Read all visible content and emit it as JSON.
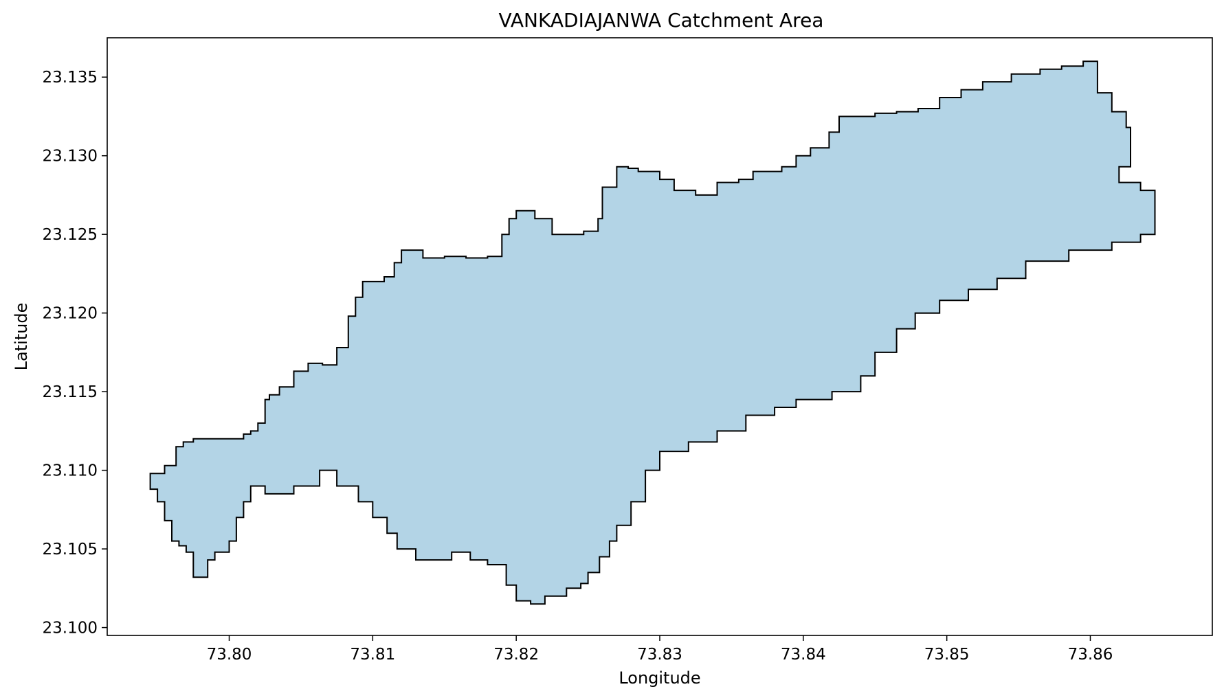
{
  "chart_data": {
    "type": "map",
    "title": "VANKADIAJANWA Catchment Area",
    "xlabel": "Longitude",
    "ylabel": "Latitude",
    "xlim": [
      73.7915,
      73.8685
    ],
    "ylim": [
      23.0995,
      23.1375
    ],
    "x_ticks": [
      {
        "value": 73.8,
        "label": "73.80"
      },
      {
        "value": 73.81,
        "label": "73.81"
      },
      {
        "value": 73.82,
        "label": "73.82"
      },
      {
        "value": 73.83,
        "label": "73.83"
      },
      {
        "value": 73.84,
        "label": "73.84"
      },
      {
        "value": 73.85,
        "label": "73.85"
      },
      {
        "value": 73.86,
        "label": "73.86"
      }
    ],
    "y_ticks": [
      {
        "value": 23.1,
        "label": "23.100"
      },
      {
        "value": 23.105,
        "label": "23.105"
      },
      {
        "value": 23.11,
        "label": "23.110"
      },
      {
        "value": 23.115,
        "label": "23.115"
      },
      {
        "value": 23.12,
        "label": "23.120"
      },
      {
        "value": 23.125,
        "label": "23.125"
      },
      {
        "value": 23.13,
        "label": "23.130"
      },
      {
        "value": 23.135,
        "label": "23.135"
      }
    ],
    "grid": false,
    "colors": {
      "fill": "#b3d4e6",
      "edge": "#000000"
    },
    "boundary": [
      [
        73.7955,
        23.1103
      ],
      [
        73.7963,
        23.1115
      ],
      [
        73.7968,
        23.1118
      ],
      [
        73.7975,
        23.112
      ],
      [
        73.8,
        23.112
      ],
      [
        73.801,
        23.1123
      ],
      [
        73.8015,
        23.1125
      ],
      [
        73.802,
        23.113
      ],
      [
        73.8025,
        23.1145
      ],
      [
        73.8028,
        23.1148
      ],
      [
        73.8035,
        23.1153
      ],
      [
        73.8045,
        23.1163
      ],
      [
        73.8055,
        23.1168
      ],
      [
        73.8065,
        23.1167
      ],
      [
        73.8075,
        23.1178
      ],
      [
        73.8083,
        23.1198
      ],
      [
        73.8088,
        23.121
      ],
      [
        73.8093,
        23.122
      ],
      [
        73.8108,
        23.1223
      ],
      [
        73.8115,
        23.1232
      ],
      [
        73.812,
        23.124
      ],
      [
        73.8135,
        23.1235
      ],
      [
        73.815,
        23.1236
      ],
      [
        73.8165,
        23.1235
      ],
      [
        73.818,
        23.1236
      ],
      [
        73.819,
        23.125
      ],
      [
        73.8195,
        23.126
      ],
      [
        73.82,
        23.1265
      ],
      [
        73.8213,
        23.126
      ],
      [
        73.8225,
        23.125
      ],
      [
        73.8235,
        23.125
      ],
      [
        73.8247,
        23.1252
      ],
      [
        73.8257,
        23.126
      ],
      [
        73.826,
        23.128
      ],
      [
        73.827,
        23.1293
      ],
      [
        73.8278,
        23.1292
      ],
      [
        73.8285,
        23.129
      ],
      [
        73.83,
        23.1285
      ],
      [
        73.831,
        23.1278
      ],
      [
        73.8325,
        23.1275
      ],
      [
        73.834,
        23.1283
      ],
      [
        73.8355,
        23.1285
      ],
      [
        73.8365,
        23.129
      ],
      [
        73.8375,
        23.129
      ],
      [
        73.8385,
        23.1293
      ],
      [
        73.8395,
        23.13
      ],
      [
        73.8405,
        23.1305
      ],
      [
        73.8418,
        23.1315
      ],
      [
        73.8425,
        23.1325
      ],
      [
        73.845,
        23.1327
      ],
      [
        73.8465,
        23.1328
      ],
      [
        73.848,
        23.133
      ],
      [
        73.8495,
        23.1337
      ],
      [
        73.851,
        23.1342
      ],
      [
        73.8525,
        23.1347
      ],
      [
        73.8545,
        23.1352
      ],
      [
        73.8565,
        23.1355
      ],
      [
        73.858,
        23.1357
      ],
      [
        73.8595,
        23.136
      ],
      [
        73.8605,
        23.134
      ],
      [
        73.8615,
        23.1328
      ],
      [
        73.8625,
        23.1318
      ],
      [
        73.8628,
        23.1293
      ],
      [
        73.862,
        23.1283
      ],
      [
        73.8635,
        23.1278
      ],
      [
        73.8645,
        23.1262
      ],
      [
        73.8645,
        23.125
      ],
      [
        73.8635,
        23.1245
      ],
      [
        73.8615,
        23.124
      ],
      [
        73.8585,
        23.1233
      ],
      [
        73.8555,
        23.1222
      ],
      [
        73.8535,
        23.1215
      ],
      [
        73.8515,
        23.1208
      ],
      [
        73.8495,
        23.12
      ],
      [
        73.8478,
        23.119
      ],
      [
        73.8465,
        23.1175
      ],
      [
        73.845,
        23.116
      ],
      [
        73.844,
        23.115
      ],
      [
        73.842,
        23.1145
      ],
      [
        73.8395,
        23.114
      ],
      [
        73.838,
        23.1135
      ],
      [
        73.836,
        23.1125
      ],
      [
        73.834,
        23.1118
      ],
      [
        73.832,
        23.1112
      ],
      [
        73.83,
        23.11
      ],
      [
        73.829,
        23.108
      ],
      [
        73.828,
        23.1065
      ],
      [
        73.827,
        23.1055
      ],
      [
        73.8265,
        23.1045
      ],
      [
        73.8258,
        23.1035
      ],
      [
        73.825,
        23.1028
      ],
      [
        73.8245,
        23.1025
      ],
      [
        73.8235,
        23.102
      ],
      [
        73.822,
        23.1015
      ],
      [
        73.821,
        23.1017
      ],
      [
        73.82,
        23.1027
      ],
      [
        73.8193,
        23.104
      ],
      [
        73.818,
        23.1043
      ],
      [
        73.8168,
        23.1048
      ],
      [
        73.8155,
        23.1043
      ],
      [
        73.8143,
        23.1043
      ],
      [
        73.813,
        23.105
      ],
      [
        73.8117,
        23.106
      ],
      [
        73.811,
        23.107
      ],
      [
        73.81,
        23.108
      ],
      [
        73.809,
        23.109
      ],
      [
        73.8075,
        23.11
      ],
      [
        73.8063,
        23.109
      ],
      [
        73.8045,
        23.1085
      ],
      [
        73.8035,
        23.1085
      ],
      [
        73.8025,
        23.109
      ],
      [
        73.8015,
        23.108
      ],
      [
        73.801,
        23.107
      ],
      [
        73.8005,
        23.1055
      ],
      [
        73.8,
        23.1048
      ],
      [
        73.799,
        23.1043
      ],
      [
        73.7985,
        23.1032
      ],
      [
        73.798,
        23.1032
      ],
      [
        73.7975,
        23.1048
      ],
      [
        73.797,
        23.1052
      ],
      [
        73.7965,
        23.1055
      ],
      [
        73.796,
        23.1068
      ],
      [
        73.7955,
        23.108
      ],
      [
        73.795,
        23.1088
      ],
      [
        73.7945,
        23.1098
      ]
    ]
  }
}
